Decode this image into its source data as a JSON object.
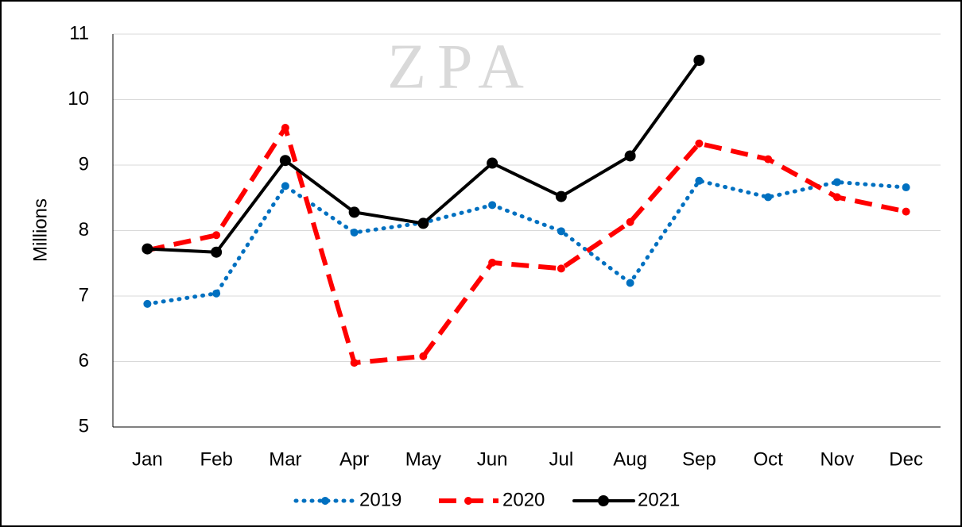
{
  "chart_data": {
    "type": "line",
    "watermark": "ZPA",
    "y_label": "Millions",
    "categories": [
      "Jan",
      "Feb",
      "Mar",
      "Apr",
      "May",
      "Jun",
      "Jul",
      "Aug",
      "Sep",
      "Oct",
      "Nov",
      "Dec"
    ],
    "series": [
      {
        "name": "2019",
        "color": "#0070c0",
        "style": "dotted",
        "values": [
          6.88,
          7.04,
          8.68,
          7.97,
          8.12,
          8.39,
          7.99,
          7.2,
          8.76,
          8.51,
          8.74,
          8.66
        ]
      },
      {
        "name": "2020",
        "color": "#ff0000",
        "style": "dashed",
        "values": [
          7.7,
          7.93,
          9.57,
          5.98,
          6.08,
          7.51,
          7.42,
          8.13,
          9.33,
          9.09,
          8.51,
          8.29
        ]
      },
      {
        "name": "2021",
        "color": "#000000",
        "style": "solid",
        "values": [
          7.72,
          7.67,
          9.07,
          8.28,
          8.11,
          9.03,
          8.52,
          9.14,
          10.6,
          null,
          null,
          null
        ]
      }
    ],
    "ylim": [
      5,
      11
    ],
    "yticks": [
      5,
      6,
      7,
      8,
      9,
      10,
      11
    ],
    "grid": true,
    "legend": "bottom"
  }
}
